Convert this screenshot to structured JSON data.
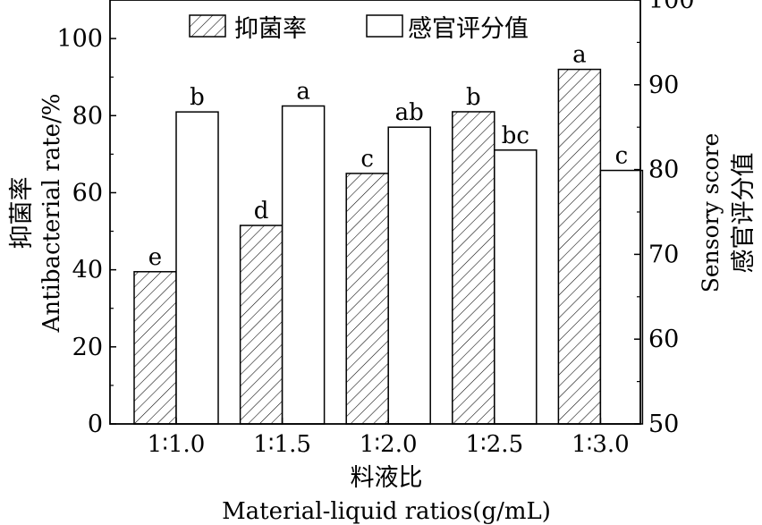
{
  "chart_data": {
    "type": "bar",
    "categories": [
      "1∶1.0",
      "1∶1.5",
      "1∶2.0",
      "1∶2.5",
      "1∶3.0"
    ],
    "series": [
      {
        "name": "抑菌率",
        "axis": "left",
        "pattern": "hatched",
        "values": [
          39.5,
          51.5,
          65.0,
          81.0,
          92.0
        ],
        "labels": [
          "e",
          "d",
          "c",
          "b",
          "a"
        ]
      },
      {
        "name": "感官评分值",
        "axis": "right",
        "pattern": "open",
        "values": [
          86.8,
          87.5,
          85.0,
          82.3,
          79.9
        ],
        "labels": [
          "b",
          "a",
          "ab",
          "bc",
          "c"
        ]
      }
    ],
    "xlabel_cn": "料液比",
    "xlabel_en": "Material-liquid ratios(g/mL)",
    "ylabel_cn": "抑菌率",
    "ylabel_en": "Antibacterial rate/%",
    "y2label_en": "Sensory score",
    "y2label_cn": "感官评分值",
    "ylim": [
      0,
      110
    ],
    "yticks": [
      0,
      20,
      40,
      60,
      80,
      100
    ],
    "y2lim": [
      50,
      100
    ],
    "y2ticks": [
      50,
      60,
      70,
      80,
      90,
      100
    ],
    "legend_position": "top",
    "grid": false
  }
}
